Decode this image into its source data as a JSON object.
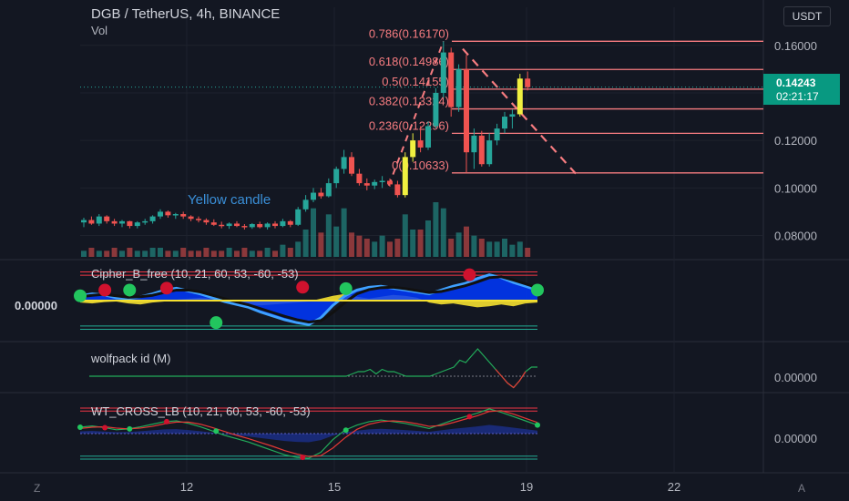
{
  "header": {
    "symbol": "DGB / TetherUS, 4h, BINANCE",
    "volume_label": "Vol",
    "currency_button": "USDT",
    "annotation": "Yellow candle"
  },
  "price_badge": {
    "price": "0.14243",
    "countdown": "02:21:17"
  },
  "bottom_buttons": {
    "z": "Z",
    "a": "A"
  },
  "colors": {
    "background": "#131722",
    "up": "#26a69a",
    "down": "#ef5350",
    "yellow": "#f0f040",
    "fib": "#f77c80",
    "badge": "#089981",
    "cipher_blue": "#1e6bff"
  },
  "chart_data": [
    {
      "type": "candlestick",
      "title": "DGB / TetherUS, 4h, BINANCE",
      "x_tick_labels": [
        "12",
        "15",
        "19",
        "22"
      ],
      "y_tick_labels": [
        "0.16000",
        "0.14000",
        "0.12000",
        "0.10000",
        "0.08000"
      ],
      "ylim": [
        0.071,
        0.176
      ],
      "last_price": 0.14243,
      "fib_levels": [
        {
          "label": "0.786(0.16170)",
          "value": 0.1617
        },
        {
          "label": "0.618(0.14986)",
          "value": 0.14986
        },
        {
          "label": "0.5(0.14155)",
          "value": 0.14155
        },
        {
          "label": "0.382(0.13324)",
          "value": 0.13324
        },
        {
          "label": "0.236(0.12296)",
          "value": 0.12296
        },
        {
          "label": "0(0.10633)",
          "value": 0.10633
        }
      ],
      "candles": [
        {
          "o": 0.0855,
          "h": 0.0875,
          "l": 0.0835,
          "c": 0.0865
        },
        {
          "o": 0.0865,
          "h": 0.088,
          "l": 0.0845,
          "c": 0.085
        },
        {
          "o": 0.085,
          "h": 0.089,
          "l": 0.084,
          "c": 0.088
        },
        {
          "o": 0.088,
          "h": 0.0885,
          "l": 0.085,
          "c": 0.086
        },
        {
          "o": 0.086,
          "h": 0.087,
          "l": 0.084,
          "c": 0.085
        },
        {
          "o": 0.085,
          "h": 0.0865,
          "l": 0.0835,
          "c": 0.086
        },
        {
          "o": 0.086,
          "h": 0.0862,
          "l": 0.083,
          "c": 0.084
        },
        {
          "o": 0.084,
          "h": 0.086,
          "l": 0.083,
          "c": 0.0855
        },
        {
          "o": 0.0855,
          "h": 0.087,
          "l": 0.0845,
          "c": 0.086
        },
        {
          "o": 0.086,
          "h": 0.0885,
          "l": 0.085,
          "c": 0.088
        },
        {
          "o": 0.088,
          "h": 0.091,
          "l": 0.087,
          "c": 0.09
        },
        {
          "o": 0.09,
          "h": 0.0905,
          "l": 0.0875,
          "c": 0.0885
        },
        {
          "o": 0.0885,
          "h": 0.0895,
          "l": 0.087,
          "c": 0.089
        },
        {
          "o": 0.089,
          "h": 0.09,
          "l": 0.087,
          "c": 0.088
        },
        {
          "o": 0.088,
          "h": 0.0885,
          "l": 0.086,
          "c": 0.087
        },
        {
          "o": 0.087,
          "h": 0.088,
          "l": 0.0855,
          "c": 0.0865
        },
        {
          "o": 0.0865,
          "h": 0.0872,
          "l": 0.0845,
          "c": 0.0855
        },
        {
          "o": 0.0855,
          "h": 0.0868,
          "l": 0.084,
          "c": 0.0845
        },
        {
          "o": 0.0845,
          "h": 0.0858,
          "l": 0.083,
          "c": 0.084
        },
        {
          "o": 0.084,
          "h": 0.0855,
          "l": 0.0828,
          "c": 0.085
        },
        {
          "o": 0.085,
          "h": 0.086,
          "l": 0.0835,
          "c": 0.084
        },
        {
          "o": 0.084,
          "h": 0.0848,
          "l": 0.0825,
          "c": 0.0835
        },
        {
          "o": 0.0835,
          "h": 0.0852,
          "l": 0.0828,
          "c": 0.0848
        },
        {
          "o": 0.0848,
          "h": 0.0858,
          "l": 0.083,
          "c": 0.0835
        },
        {
          "o": 0.0835,
          "h": 0.0855,
          "l": 0.0825,
          "c": 0.085
        },
        {
          "o": 0.085,
          "h": 0.086,
          "l": 0.083,
          "c": 0.084
        },
        {
          "o": 0.084,
          "h": 0.087,
          "l": 0.0835,
          "c": 0.086
        },
        {
          "o": 0.086,
          "h": 0.0865,
          "l": 0.0835,
          "c": 0.0845
        },
        {
          "o": 0.0845,
          "h": 0.092,
          "l": 0.084,
          "c": 0.091
        },
        {
          "o": 0.091,
          "h": 0.097,
          "l": 0.09,
          "c": 0.095
        },
        {
          "o": 0.095,
          "h": 0.1,
          "l": 0.094,
          "c": 0.098
        },
        {
          "o": 0.098,
          "h": 0.1,
          "l": 0.0955,
          "c": 0.0965
        },
        {
          "o": 0.0965,
          "h": 0.104,
          "l": 0.096,
          "c": 0.102
        },
        {
          "o": 0.102,
          "h": 0.109,
          "l": 0.1,
          "c": 0.108
        },
        {
          "o": 0.108,
          "h": 0.116,
          "l": 0.106,
          "c": 0.113
        },
        {
          "o": 0.113,
          "h": 0.115,
          "l": 0.105,
          "c": 0.106
        },
        {
          "o": 0.106,
          "h": 0.108,
          "l": 0.101,
          "c": 0.102
        },
        {
          "o": 0.102,
          "h": 0.104,
          "l": 0.099,
          "c": 0.101
        },
        {
          "o": 0.101,
          "h": 0.1035,
          "l": 0.0995,
          "c": 0.1025
        },
        {
          "o": 0.1025,
          "h": 0.105,
          "l": 0.1,
          "c": 0.103
        },
        {
          "o": 0.103,
          "h": 0.104,
          "l": 0.1005,
          "c": 0.1015
        },
        {
          "o": 0.1015,
          "h": 0.103,
          "l": 0.096,
          "c": 0.097
        },
        {
          "o": 0.097,
          "h": 0.115,
          "l": 0.096,
          "c": 0.113
        },
        {
          "o": 0.113,
          "h": 0.123,
          "l": 0.111,
          "c": 0.12
        },
        {
          "o": 0.12,
          "h": 0.126,
          "l": 0.115,
          "c": 0.117
        },
        {
          "o": 0.117,
          "h": 0.128,
          "l": 0.116,
          "c": 0.126
        },
        {
          "o": 0.126,
          "h": 0.142,
          "l": 0.125,
          "c": 0.14
        },
        {
          "o": 0.14,
          "h": 0.1617,
          "l": 0.138,
          "c": 0.157
        },
        {
          "o": 0.157,
          "h": 0.159,
          "l": 0.13,
          "c": 0.134
        },
        {
          "o": 0.134,
          "h": 0.152,
          "l": 0.132,
          "c": 0.15
        },
        {
          "o": 0.15,
          "h": 0.156,
          "l": 0.1063,
          "c": 0.115
        },
        {
          "o": 0.115,
          "h": 0.125,
          "l": 0.108,
          "c": 0.122
        },
        {
          "o": 0.122,
          "h": 0.124,
          "l": 0.109,
          "c": 0.11
        },
        {
          "o": 0.11,
          "h": 0.123,
          "l": 0.109,
          "c": 0.12
        },
        {
          "o": 0.12,
          "h": 0.127,
          "l": 0.118,
          "c": 0.125
        },
        {
          "o": 0.125,
          "h": 0.132,
          "l": 0.123,
          "c": 0.13
        },
        {
          "o": 0.13,
          "h": 0.133,
          "l": 0.125,
          "c": 0.131
        },
        {
          "o": 0.131,
          "h": 0.148,
          "l": 0.13,
          "c": 0.146
        },
        {
          "o": 0.146,
          "h": 0.149,
          "l": 0.141,
          "c": 0.1424
        }
      ],
      "volumes": [
        2,
        3,
        2,
        2,
        3,
        2,
        3,
        2,
        2,
        3,
        3,
        2,
        2,
        3,
        2,
        2,
        3,
        2,
        2,
        3,
        2,
        3,
        2,
        2,
        3,
        2,
        4,
        3,
        5,
        9,
        16,
        8,
        14,
        10,
        16,
        8,
        7,
        6,
        5,
        7,
        5,
        6,
        14,
        9,
        9,
        12,
        18,
        16,
        6,
        8,
        10,
        7,
        6,
        5,
        5,
        6,
        4,
        5,
        3
      ],
      "yellow_candle_index": 42
    },
    {
      "type": "area",
      "title": "Cipher_B_free (10, 21, 60, 53, -60, -53)",
      "y_tick_labels": [
        "0.00000"
      ],
      "ylim": [
        -80,
        80
      ],
      "wt1": [
        10,
        14,
        12,
        6,
        4,
        8,
        14,
        22,
        26,
        20,
        14,
        6,
        -2,
        -8,
        -14,
        -24,
        -32,
        -40,
        -46,
        -50,
        -36,
        -10,
        10,
        22,
        28,
        30,
        26,
        22,
        18,
        14,
        22,
        30,
        36,
        46,
        54,
        48,
        38,
        30,
        22
      ],
      "wt2": [
        8,
        11,
        13,
        10,
        7,
        8,
        11,
        17,
        22,
        22,
        18,
        11,
        4,
        -3,
        -9,
        -17,
        -25,
        -33,
        -40,
        -45,
        -42,
        -25,
        -4,
        14,
        23,
        27,
        28,
        25,
        21,
        17,
        19,
        25,
        31,
        39,
        48,
        50,
        43,
        35,
        27
      ],
      "money_flow": [
        -4,
        -6,
        -3,
        -2,
        -6,
        -8,
        -4,
        -2,
        2,
        4,
        6,
        4,
        -2,
        -6,
        -8,
        -10,
        -8,
        -6,
        -4,
        -2,
        4,
        10,
        14,
        8,
        4,
        8,
        12,
        10,
        6,
        -4,
        -8,
        -6,
        -10,
        -14,
        -12,
        -8,
        -12,
        -6,
        -4
      ],
      "green_dots": [
        [
          0,
          10
        ],
        [
          8,
          22
        ],
        [
          22,
          -46
        ],
        [
          43,
          25
        ],
        [
          74,
          22
        ]
      ],
      "red_dots": [
        [
          4,
          22
        ],
        [
          14,
          26
        ],
        [
          36,
          28
        ],
        [
          63,
          54
        ]
      ]
    },
    {
      "type": "line",
      "title": "wolfpack id (M)",
      "y_tick_labels": [
        "0.00000"
      ],
      "ylim": [
        -6,
        14
      ],
      "values": [
        0,
        0,
        0,
        0,
        0,
        0,
        0,
        0,
        0,
        0,
        0,
        0,
        0,
        0,
        0,
        0,
        0,
        0,
        0,
        0,
        0,
        0,
        0,
        0,
        0,
        0,
        0,
        0,
        0,
        0,
        0,
        0,
        0,
        0,
        0,
        0,
        0,
        0,
        0,
        0,
        0,
        0,
        0,
        0,
        1,
        2,
        2,
        3,
        1,
        3,
        2,
        2,
        1,
        0,
        0,
        0,
        0,
        0,
        1,
        2,
        3,
        4,
        7,
        6,
        9,
        12,
        9,
        6,
        3,
        0,
        -3,
        -5,
        -2,
        2,
        4,
        4
      ]
    },
    {
      "type": "line",
      "title": "WT_CROSS_LB (10, 21, 60, 53, -60, -53)",
      "y_tick_labels": [
        "0.00000"
      ],
      "ylim": [
        -90,
        90
      ],
      "wt1": [
        15,
        18,
        14,
        9,
        11,
        16,
        22,
        28,
        30,
        24,
        16,
        6,
        -4,
        -12,
        -20,
        -30,
        -40,
        -50,
        -56,
        -58,
        -44,
        -14,
        8,
        20,
        28,
        32,
        28,
        24,
        18,
        12,
        22,
        32,
        40,
        48,
        58,
        50,
        40,
        30,
        20
      ],
      "wt2": [
        12,
        15,
        16,
        13,
        11,
        13,
        17,
        23,
        27,
        27,
        22,
        14,
        5,
        -4,
        -12,
        -21,
        -30,
        -40,
        -48,
        -54,
        -52,
        -34,
        -10,
        10,
        22,
        28,
        30,
        28,
        23,
        17,
        19,
        26,
        34,
        42,
        52,
        54,
        46,
        36,
        26
      ]
    }
  ]
}
